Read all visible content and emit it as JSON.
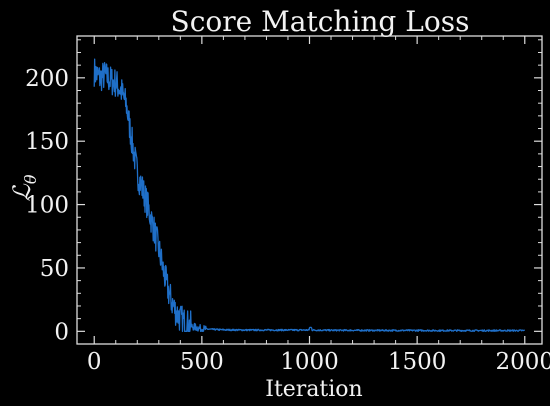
{
  "chart_data": {
    "type": "line",
    "title": "Score Matching Loss",
    "xlabel": "Iteration",
    "ylabel": "ℒ",
    "ylabel_subscript": "θ",
    "xlim": [
      -80,
      2080
    ],
    "ylim": [
      -10,
      233
    ],
    "xticks": [
      0,
      500,
      1000,
      1500,
      2000
    ],
    "yticks": [
      0,
      50,
      100,
      150,
      200
    ],
    "xtick_labels": [
      "0",
      "500",
      "1000",
      "1500",
      "2000"
    ],
    "ytick_labels": [
      "0",
      "50",
      "100",
      "150",
      "200"
    ],
    "grid": false,
    "line_color": "#1f6fc8",
    "background": "#000000",
    "axis_color": "#dddddd",
    "series": [
      {
        "x": [
          0,
          25,
          50,
          75,
          100,
          125,
          150,
          175,
          200,
          225,
          250,
          275,
          300,
          325,
          350,
          375,
          400,
          425,
          450,
          475,
          500,
          550,
          600,
          700,
          800,
          900,
          1000,
          1100,
          1200,
          1300,
          1400,
          1500,
          1600,
          1700,
          1800,
          1900,
          2000
        ],
        "y": [
          205,
          200,
          202,
          198,
          196,
          190,
          178,
          150,
          125,
          112,
          98,
          82,
          65,
          45,
          28,
          17,
          10,
          6,
          4,
          3,
          2,
          1.5,
          1.2,
          1,
          1,
          1,
          1,
          0.8,
          0.8,
          0.7,
          0.7,
          0.7,
          0.6,
          0.6,
          0.6,
          0.6,
          0.6
        ]
      }
    ]
  }
}
